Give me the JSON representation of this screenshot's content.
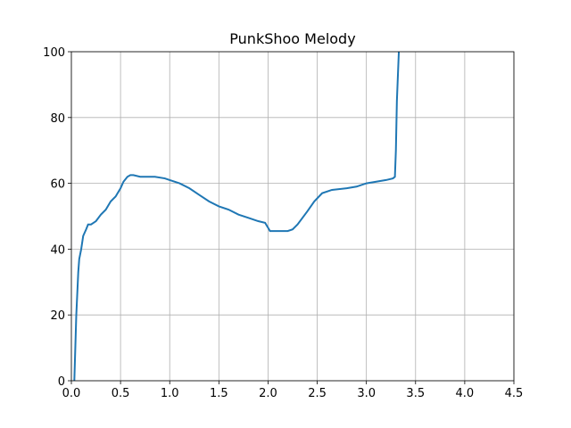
{
  "chart_data": {
    "type": "line",
    "title": "PunkShoo Melody",
    "x": [
      0.03,
      0.05,
      0.07,
      0.08,
      0.1,
      0.12,
      0.15,
      0.17,
      0.2,
      0.25,
      0.3,
      0.35,
      0.4,
      0.45,
      0.5,
      0.53,
      0.57,
      0.6,
      0.63,
      0.7,
      0.75,
      0.85,
      0.95,
      1.0,
      1.1,
      1.2,
      1.3,
      1.4,
      1.5,
      1.6,
      1.7,
      1.8,
      1.9,
      1.97,
      2.0,
      2.02,
      2.1,
      2.2,
      2.25,
      2.3,
      2.4,
      2.47,
      2.55,
      2.65,
      2.8,
      2.9,
      3.0,
      3.1,
      3.2,
      3.27,
      3.29,
      3.3,
      3.31,
      3.33
    ],
    "values": [
      0,
      20,
      33,
      37,
      40,
      44,
      46,
      47.5,
      47.5,
      48.5,
      50.5,
      52,
      54.5,
      56,
      58.5,
      60.5,
      62,
      62.5,
      62.5,
      62,
      62,
      62,
      61.5,
      61,
      60,
      58.5,
      56.5,
      54.5,
      53,
      52,
      50.5,
      49.5,
      48.5,
      48,
      46.5,
      45.5,
      45.5,
      45.5,
      46,
      47.5,
      51.5,
      54.5,
      57,
      58,
      58.5,
      59,
      60,
      60.5,
      61,
      61.5,
      62,
      70,
      85,
      100
    ],
    "color": "#1f77b4",
    "xlim": [
      0,
      4.5
    ],
    "xticks": [
      {
        "value": 0,
        "label": "0.0"
      },
      0.5,
      {
        "value": 1,
        "label": "1.0"
      },
      1.5,
      {
        "value": 2,
        "label": "2.0"
      },
      2.5,
      {
        "value": 3,
        "label": "3.0"
      },
      3.5,
      {
        "value": 4,
        "label": "4.0"
      },
      4.5
    ],
    "ylim": [
      0,
      100
    ],
    "yticks": [
      0,
      20,
      40,
      60,
      80,
      100
    ],
    "grid": true
  }
}
